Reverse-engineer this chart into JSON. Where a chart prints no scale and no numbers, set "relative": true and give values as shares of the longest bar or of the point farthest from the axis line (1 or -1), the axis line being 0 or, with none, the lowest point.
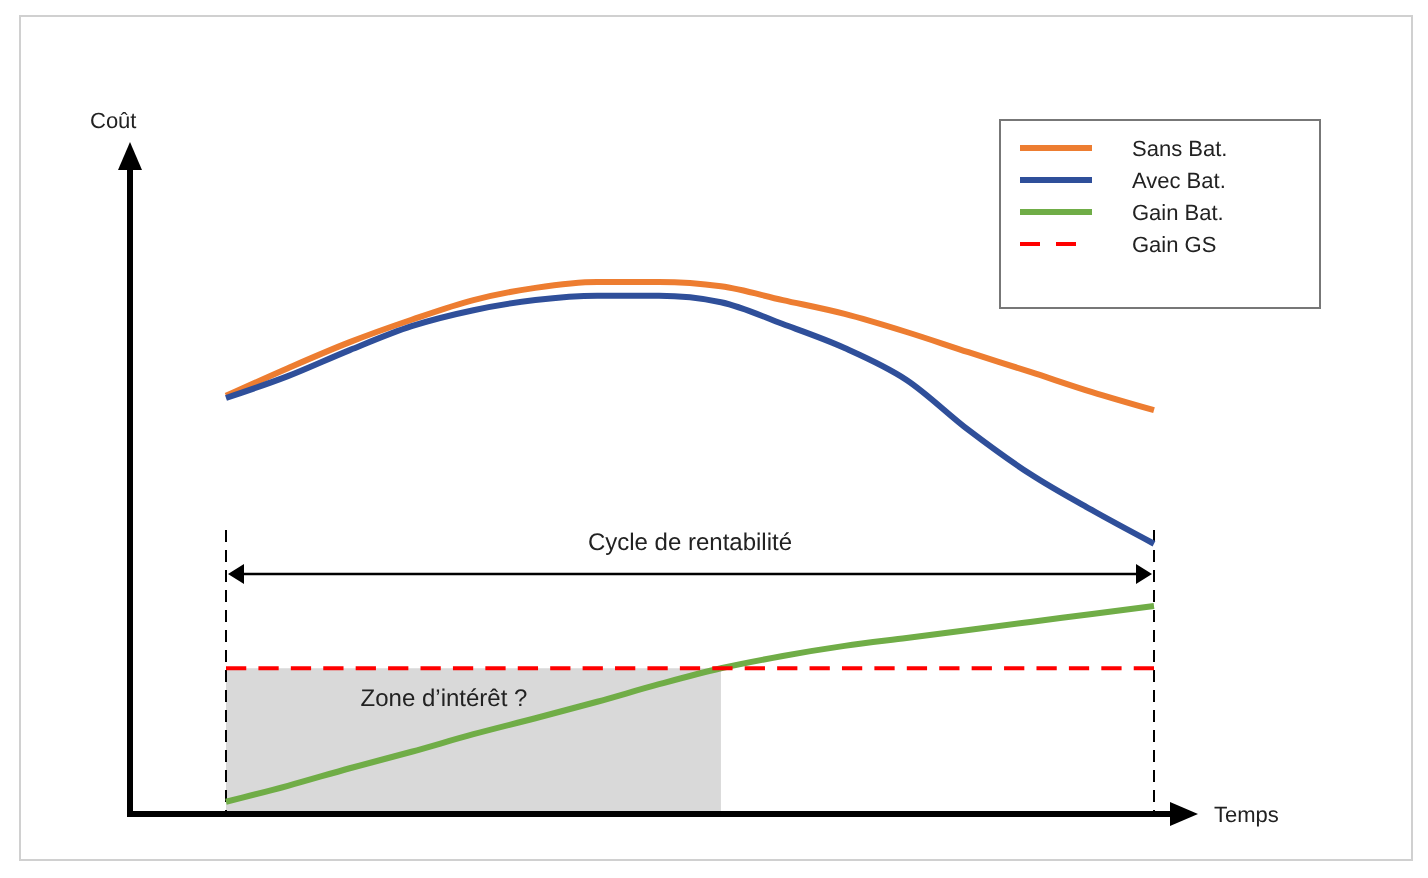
{
  "chart_data": {
    "type": "line",
    "relative": true,
    "xlabel": "Temps",
    "legend": "top right",
    "categories": [
      null,
      null,
      null,
      null,
      null,
      null,
      null,
      null,
      null,
      null,
      null,
      null,
      null,
      null,
      null,
      null
    ],
    "series": [
      {
        "type": "area",
        "color": "#d9d9d9",
        "values": [
          0.274,
          0.274,
          0.274,
          0.274,
          0.274,
          0.274,
          0.274,
          0.274,
          0.274,
          null,
          null,
          null,
          null,
          null,
          null,
          null
        ]
      },
      {
        "name": "Sans Bat.",
        "color": "#ed7d31",
        "values": [
          0.786,
          0.838,
          0.887,
          0.929,
          0.966,
          0.989,
          1,
          1,
          0.992,
          0.966,
          0.94,
          0.906,
          0.868,
          0.831,
          0.793,
          0.759
        ]
      },
      {
        "name": "Avec Bat.",
        "color": "#2f4f9a",
        "values": [
          0.782,
          0.823,
          0.872,
          0.917,
          0.947,
          0.966,
          0.974,
          0.974,
          0.962,
          0.921,
          0.876,
          0.816,
          0.722,
          0.639,
          0.571,
          0.508
        ]
      },
      {
        "name": "Gain Bat.",
        "color": "#70ad47",
        "values": [
          0.023,
          0.053,
          0.086,
          0.117,
          0.15,
          0.18,
          0.211,
          0.244,
          0.274,
          0.297,
          0.316,
          0.331,
          0.346,
          0.361,
          0.376,
          0.391
        ]
      },
      {
        "name": "Gain GS",
        "color": "#ff0000",
        "line_style": "dashed",
        "values": [
          0.274,
          0.274,
          0.274,
          0.274,
          0.274,
          0.274,
          0.274,
          0.274,
          0.274,
          0.274,
          0.274,
          0.274,
          0.274,
          0.274,
          0.274,
          0.274
        ]
      }
    ],
    "annotations": [
      "Cycle de rentabilité",
      "Zone d’intérêt ?",
      "Coût"
    ]
  }
}
